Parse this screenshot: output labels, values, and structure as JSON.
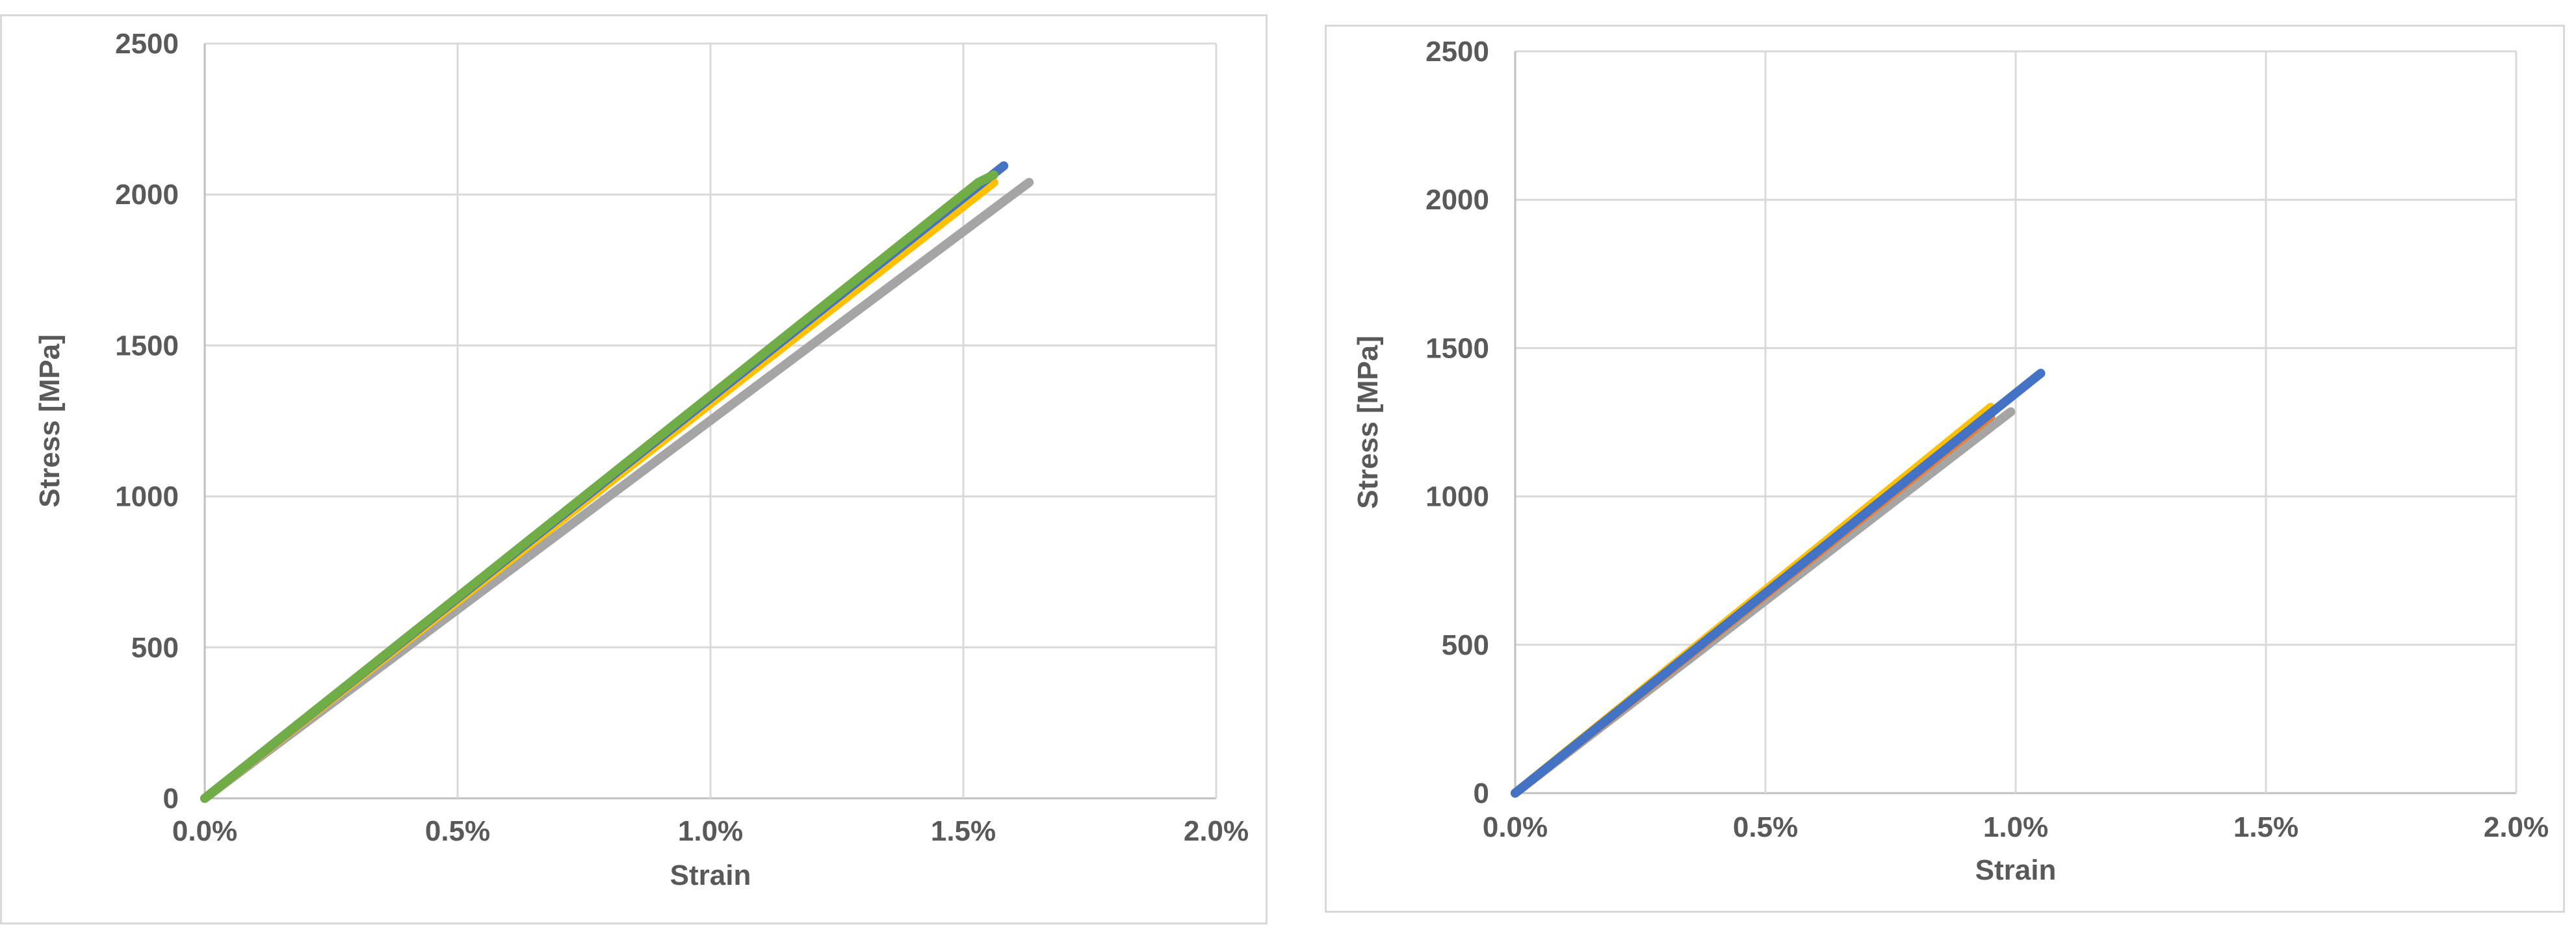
{
  "chart_data": [
    {
      "type": "line",
      "title": "",
      "xlabel": "Strain",
      "ylabel": "Stress [MPa]",
      "xlim": [
        0,
        0.02
      ],
      "ylim": [
        0,
        2500
      ],
      "x_ticks": [
        "0.0%",
        "0.5%",
        "1.0%",
        "1.5%",
        "2.0%"
      ],
      "y_ticks": [
        "0",
        "500",
        "1000",
        "1500",
        "2000",
        "2500"
      ],
      "grid": true,
      "legend": "none",
      "series": [
        {
          "color": "#a5a5a5",
          "x": [
            0,
            0.0163
          ],
          "y": [
            0,
            2040
          ]
        },
        {
          "color": "#ffc000",
          "x": [
            0,
            0.0156
          ],
          "y": [
            0,
            2040
          ]
        },
        {
          "color": "#4472c4",
          "x": [
            0,
            0.0158
          ],
          "y": [
            0,
            2095
          ]
        },
        {
          "color": "#70ad47",
          "x": [
            0,
            0.0153,
            0.0156
          ],
          "y": [
            0,
            2040,
            2065
          ]
        }
      ]
    },
    {
      "type": "line",
      "title": "",
      "xlabel": "Strain",
      "ylabel": "Stress [MPa]",
      "xlim": [
        0,
        0.02
      ],
      "ylim": [
        0,
        2500
      ],
      "x_ticks": [
        "0.0%",
        "0.5%",
        "1.0%",
        "1.5%",
        "2.0%"
      ],
      "y_ticks": [
        "0",
        "500",
        "1000",
        "1500",
        "2000",
        "2500"
      ],
      "grid": true,
      "legend": "none",
      "series": [
        {
          "color": "#a5a5a5",
          "x": [
            0,
            0.0099
          ],
          "y": [
            0,
            1285
          ]
        },
        {
          "color": "#ed7d31",
          "x": [
            0,
            0.0095
          ],
          "y": [
            0,
            1270
          ]
        },
        {
          "color": "#ffc000",
          "x": [
            0,
            0.0095
          ],
          "y": [
            0,
            1300
          ]
        },
        {
          "color": "#4472c4",
          "x": [
            0,
            0.0105
          ],
          "y": [
            0,
            1415
          ]
        }
      ]
    }
  ]
}
